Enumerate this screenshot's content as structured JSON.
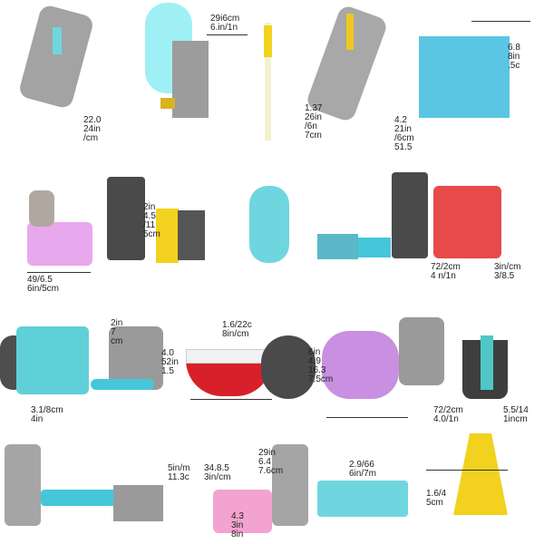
{
  "colors": {
    "cyan": "#6fd6df",
    "gray": "#9a9a9a",
    "purple": "#c98fe0",
    "pink": "#f3a3cf",
    "red": "#d8202a",
    "yellow": "#f2d21e",
    "dark": "#4a4a4a",
    "blue": "#3fb7d6"
  },
  "labels": [
    {
      "id": "l1",
      "text": "29i6cm\n6.in/1n"
    },
    {
      "id": "l2",
      "text": "22.0\n24in\n/cm"
    },
    {
      "id": "l3",
      "text": "1.37\n26in\n/6n\n7cm"
    },
    {
      "id": "l4",
      "text": "4.2\n21in\n/6cm\n51.5"
    },
    {
      "id": "l5",
      "text": "6.8\n8in\n.5c"
    },
    {
      "id": "l6",
      "text": "2in\n4.5\n/11\n5cm"
    },
    {
      "id": "l7",
      "text": "49/6.5\n6in/5cm"
    },
    {
      "id": "l8",
      "text": "72/2cm\n4 n/1n"
    },
    {
      "id": "l9",
      "text": "3in/cm\n3/8.5"
    },
    {
      "id": "l10",
      "text": "2in\n7\ncm"
    },
    {
      "id": "l11",
      "text": "1.6/22c\n8in/cm"
    },
    {
      "id": "l12",
      "text": "4.0\n52in\n1.5"
    },
    {
      "id": "l13",
      "text": "6in\n4.9\n16.3\n7.5cm"
    },
    {
      "id": "l14",
      "text": "72/2cm\n4.0/1n"
    },
    {
      "id": "l15",
      "text": "5.5/14\n1incm"
    },
    {
      "id": "l16",
      "text": "3.1/8cm\n4in"
    },
    {
      "id": "l17",
      "text": "5in/m\n11.3c"
    },
    {
      "id": "l18",
      "text": "34.8.5\n3in/cm"
    },
    {
      "id": "l19",
      "text": "29in\n6.4\n7.6cm"
    },
    {
      "id": "l20",
      "text": "2.9/66\n6in/7m"
    },
    {
      "id": "l21",
      "text": "4.3\n3in\n8in"
    },
    {
      "id": "l22",
      "text": "1.6/4\n5cm"
    }
  ]
}
